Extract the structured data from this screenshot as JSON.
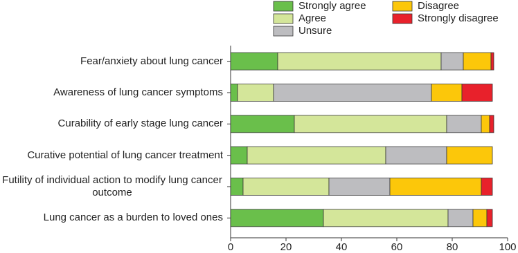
{
  "chart_data": {
    "type": "stacked-bar-horizontal",
    "categories": [
      "Fear/anxiety about lung cancer",
      "Awareness of lung cancer symptoms",
      "Curability of early stage lung cancer",
      "Curative potential of lung cancer treatment",
      "Futility of individual action to modify lung cancer outcome",
      "Lung cancer as a burden to loved ones"
    ],
    "series": [
      {
        "name": "Strongly agree",
        "color": "#6abf4b",
        "values": [
          17,
          2.5,
          23,
          6,
          4.5,
          33.5
        ]
      },
      {
        "name": "Agree",
        "color": "#d4e69a",
        "values": [
          59,
          13,
          55,
          50,
          31,
          45
        ]
      },
      {
        "name": "Unsure",
        "color": "#bdbdc0",
        "values": [
          8,
          57,
          12.5,
          22,
          22,
          9
        ]
      },
      {
        "name": "Disagree",
        "color": "#fcc70a",
        "values": [
          10,
          11,
          3,
          16.5,
          33,
          5
        ]
      },
      {
        "name": "Strongly disagree",
        "color": "#e8212b",
        "values": [
          1,
          11,
          1.5,
          0,
          4,
          2
        ]
      }
    ],
    "xlim": [
      0,
      100
    ],
    "xticks": [
      0,
      20,
      40,
      60,
      80,
      100
    ]
  }
}
